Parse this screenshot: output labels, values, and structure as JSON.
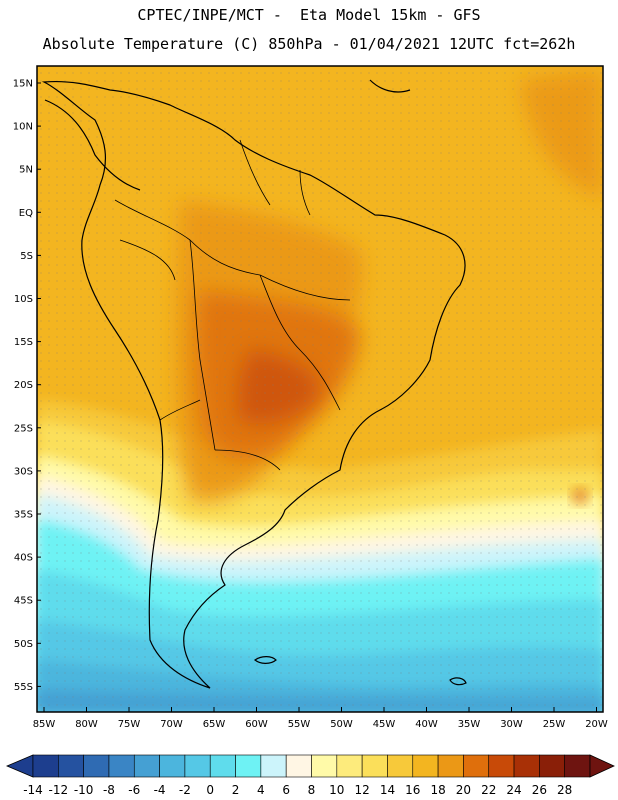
{
  "header": {
    "line1": "CPTEC/INPE/MCT -  Eta Model 15km - GFS",
    "line2": "Absolute Temperature (C) 850hPa - 01/04/2021 12UTC fct=262h"
  },
  "map": {
    "lat_labels": [
      "15N",
      "10N",
      "5N",
      "EQ",
      "5S",
      "10S",
      "15S",
      "20S",
      "25S",
      "30S",
      "35S",
      "40S",
      "45S",
      "50S",
      "55S"
    ],
    "lon_labels": [
      "85W",
      "80W",
      "75W",
      "70W",
      "65W",
      "60W",
      "55W",
      "50W",
      "45W",
      "40W",
      "35W",
      "30W",
      "25W",
      "20W"
    ]
  },
  "colorbar": {
    "labels": [
      "-14",
      "-12",
      "-10",
      "-8",
      "-6",
      "-4",
      "-2",
      "0",
      "2",
      "4",
      "6",
      "8",
      "10",
      "12",
      "14",
      "16",
      "18",
      "20",
      "22",
      "24",
      "26",
      "28"
    ],
    "colors": [
      "#1d3e8e",
      "#2552a0",
      "#2f6bb3",
      "#3a85c5",
      "#45a0d3",
      "#4cb5dd",
      "#55c8e6",
      "#5fdcec",
      "#6ef2f4",
      "#ccf4fb",
      "#fff6e4",
      "#fffaa8",
      "#fdeb7c",
      "#fbdf5a",
      "#f7c93a",
      "#f3b520",
      "#eb9816",
      "#df6f0c",
      "#c84a08",
      "#a83006",
      "#8a1f08",
      "#6e1410"
    ]
  }
}
